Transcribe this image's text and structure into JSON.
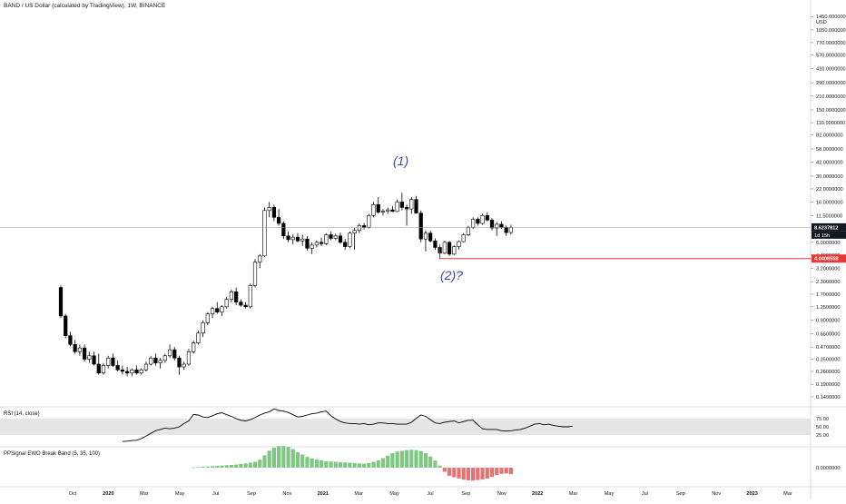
{
  "header": {
    "title": "BAND / US Dollar (calculated by TradingView), 1W, BINANCE"
  },
  "price_axis": {
    "unit": "USD",
    "ticks": [
      "1450.0000000",
      "1050.0000000",
      "770.0000000",
      "570.0000000",
      "410.0000000",
      "290.0000000",
      "210.0000000",
      "150.0000000",
      "110.0000000",
      "82.0000000",
      "58.0000000",
      "42.0000000",
      "30.0000000",
      "22.0000000",
      "16.0000000",
      "11.5000000",
      "8.0000000",
      "6.0000000",
      "4.4000000",
      "3.2000000",
      "2.3000000",
      "1.7000000",
      "1.2500000",
      "0.9000000",
      "0.6500000",
      "0.4700000",
      "0.3500000",
      "0.2600000",
      "0.1900000",
      "0.1400000"
    ],
    "last_price_label": "8.6237812",
    "countdown_label": "1d 15h",
    "support_label": "4.0408558"
  },
  "time_axis": {
    "ticks": [
      "Oct",
      "2020",
      "Mar",
      "May",
      "Jul",
      "Sep",
      "Nov",
      "2021",
      "Mar",
      "May",
      "Jul",
      "Sep",
      "Nov",
      "2022",
      "Mar",
      "May",
      "Jul",
      "Sep",
      "Nov",
      "2023",
      "Mar"
    ]
  },
  "annotations": {
    "wave1": "(1)",
    "wave2": "(2)?"
  },
  "colors": {
    "up": "#ffffff",
    "down": "#000000",
    "support_line": "#e53935",
    "annotation": "#3949ab",
    "ewo_up": "#81c784",
    "ewo_down": "#e57373",
    "rsi_line": "#000000"
  },
  "rsi_pane": {
    "label": "RSI (14, close)",
    "ticks": [
      "75.00",
      "50.00",
      "25.00"
    ]
  },
  "ewo_pane": {
    "label": "PPSignal EWO Break Band (5, 35, 100)",
    "tick": "0.0000000"
  },
  "chart_data": [
    {
      "type": "candlestick",
      "interval": "1W",
      "scale": "log",
      "ylim": [
        0.12,
        1900
      ],
      "support_level": 4.0408558,
      "last_price": 8.6237812,
      "candles": [
        [
          2.0,
          2.1,
          0.95,
          1.0
        ],
        [
          1.0,
          1.05,
          0.58,
          0.62
        ],
        [
          0.62,
          0.68,
          0.48,
          0.5
        ],
        [
          0.5,
          0.56,
          0.4,
          0.42
        ],
        [
          0.42,
          0.5,
          0.38,
          0.46
        ],
        [
          0.46,
          0.5,
          0.33,
          0.35
        ],
        [
          0.35,
          0.42,
          0.32,
          0.38
        ],
        [
          0.38,
          0.42,
          0.3,
          0.31
        ],
        [
          0.31,
          0.4,
          0.24,
          0.25
        ],
        [
          0.25,
          0.32,
          0.24,
          0.3
        ],
        [
          0.3,
          0.38,
          0.28,
          0.36
        ],
        [
          0.36,
          0.4,
          0.29,
          0.3
        ],
        [
          0.3,
          0.34,
          0.26,
          0.27
        ],
        [
          0.27,
          0.3,
          0.24,
          0.26
        ],
        [
          0.26,
          0.29,
          0.23,
          0.25
        ],
        [
          0.25,
          0.28,
          0.23,
          0.27
        ],
        [
          0.27,
          0.3,
          0.24,
          0.25
        ],
        [
          0.25,
          0.28,
          0.24,
          0.27
        ],
        [
          0.27,
          0.33,
          0.26,
          0.31
        ],
        [
          0.31,
          0.38,
          0.3,
          0.36
        ],
        [
          0.36,
          0.4,
          0.3,
          0.32
        ],
        [
          0.32,
          0.36,
          0.28,
          0.34
        ],
        [
          0.34,
          0.4,
          0.32,
          0.38
        ],
        [
          0.38,
          0.5,
          0.36,
          0.44
        ],
        [
          0.44,
          0.47,
          0.34,
          0.36
        ],
        [
          0.36,
          0.38,
          0.24,
          0.29
        ],
        [
          0.29,
          0.33,
          0.27,
          0.31
        ],
        [
          0.31,
          0.45,
          0.3,
          0.42
        ],
        [
          0.42,
          0.55,
          0.4,
          0.52
        ],
        [
          0.52,
          0.7,
          0.5,
          0.66
        ],
        [
          0.66,
          0.9,
          0.6,
          0.85
        ],
        [
          0.85,
          1.1,
          0.8,
          1.05
        ],
        [
          1.05,
          1.25,
          0.95,
          1.2
        ],
        [
          1.2,
          1.4,
          1.05,
          1.1
        ],
        [
          1.1,
          1.3,
          1.0,
          1.25
        ],
        [
          1.25,
          1.6,
          1.2,
          1.5
        ],
        [
          1.5,
          1.9,
          1.4,
          1.8
        ],
        [
          1.8,
          2.0,
          1.3,
          1.4
        ],
        [
          1.4,
          1.5,
          1.25,
          1.3
        ],
        [
          1.3,
          1.4,
          1.2,
          1.25
        ],
        [
          1.25,
          2.2,
          1.2,
          2.1
        ],
        [
          2.1,
          4.0,
          2.0,
          3.7
        ],
        [
          3.7,
          4.5,
          3.2,
          4.3
        ],
        [
          4.3,
          14.0,
          4.2,
          13.0
        ],
        [
          13.0,
          16.0,
          11.0,
          14.0
        ],
        [
          14.0,
          15.0,
          10.0,
          11.0
        ],
        [
          11.0,
          13.5,
          9.0,
          9.5
        ],
        [
          9.5,
          10.0,
          6.5,
          7.0
        ],
        [
          7.0,
          7.8,
          6.0,
          6.4
        ],
        [
          6.4,
          7.3,
          5.7,
          6.8
        ],
        [
          6.8,
          7.5,
          6.0,
          6.2
        ],
        [
          6.2,
          7.2,
          5.5,
          6.5
        ],
        [
          6.5,
          7.0,
          4.9,
          5.2
        ],
        [
          5.2,
          6.0,
          4.5,
          5.6
        ],
        [
          5.6,
          6.3,
          5.3,
          6.0
        ],
        [
          6.0,
          6.7,
          5.5,
          5.8
        ],
        [
          5.8,
          7.5,
          5.6,
          7.2
        ],
        [
          7.2,
          7.8,
          6.3,
          6.6
        ],
        [
          6.6,
          7.4,
          6.3,
          7.0
        ],
        [
          7.0,
          7.6,
          5.8,
          6.0
        ],
        [
          6.0,
          6.5,
          5.0,
          5.4
        ],
        [
          5.4,
          7.8,
          5.2,
          7.5
        ],
        [
          7.5,
          8.5,
          5.0,
          8.0
        ],
        [
          8.0,
          9.5,
          7.5,
          9.0
        ],
        [
          9.0,
          9.6,
          8.2,
          8.6
        ],
        [
          8.6,
          12.0,
          8.4,
          11.5
        ],
        [
          11.5,
          16.0,
          11.0,
          15.0
        ],
        [
          15.0,
          18.0,
          12.0,
          12.5
        ],
        [
          12.5,
          13.5,
          11.5,
          12.8
        ],
        [
          12.8,
          14.0,
          12.0,
          13.2
        ],
        [
          13.2,
          14.5,
          12.5,
          12.7
        ],
        [
          12.7,
          17.0,
          12.5,
          16.0
        ],
        [
          16.0,
          20.0,
          13.0,
          14.0
        ],
        [
          14.0,
          15.0,
          9.0,
          13.5
        ],
        [
          13.5,
          18.0,
          12.0,
          17.0
        ],
        [
          17.0,
          18.5,
          12.0,
          12.2
        ],
        [
          12.2,
          13.0,
          6.0,
          6.5
        ],
        [
          6.5,
          8.0,
          4.8,
          7.5
        ],
        [
          7.5,
          8.0,
          6.0,
          6.2
        ],
        [
          6.2,
          6.6,
          5.0,
          5.3
        ],
        [
          5.3,
          5.6,
          4.0,
          4.6
        ],
        [
          4.6,
          6.2,
          4.5,
          6.0
        ],
        [
          6.0,
          6.2,
          4.3,
          4.5
        ],
        [
          4.5,
          5.6,
          4.4,
          5.4
        ],
        [
          5.4,
          6.3,
          5.0,
          6.1
        ],
        [
          6.1,
          7.5,
          6.0,
          7.2
        ],
        [
          7.2,
          9.0,
          7.0,
          8.6
        ],
        [
          8.6,
          11.0,
          8.3,
          10.5
        ],
        [
          10.5,
          11.0,
          9.0,
          9.5
        ],
        [
          9.5,
          12.0,
          9.2,
          11.5
        ],
        [
          11.5,
          12.5,
          10.0,
          10.3
        ],
        [
          10.3,
          10.8,
          8.0,
          8.5
        ],
        [
          8.5,
          9.8,
          7.0,
          9.3
        ],
        [
          9.3,
          10.0,
          8.3,
          8.6
        ],
        [
          8.6,
          9.0,
          7.0,
          7.6
        ],
        [
          7.6,
          9.2,
          7.2,
          8.62
        ]
      ]
    },
    {
      "type": "line",
      "name": "RSI (14, close)",
      "ylim": [
        0,
        100
      ],
      "values": [
        null,
        null,
        null,
        null,
        null,
        null,
        null,
        null,
        null,
        null,
        null,
        null,
        null,
        null,
        null,
        null,
        null,
        null,
        null,
        null,
        null,
        null,
        null,
        null,
        null,
        null,
        null,
        null,
        null,
        null,
        null,
        null,
        null,
        null,
        null,
        null,
        null,
        null,
        null,
        null,
        null,
        null,
        null,
        null,
        null,
        null,
        null,
        null,
        null,
        null,
        null,
        null,
        null,
        null,
        null,
        null,
        null,
        null,
        null,
        null,
        null,
        null,
        null,
        null,
        null,
        null,
        null,
        null,
        null,
        null,
        null,
        null,
        null,
        null,
        null,
        null,
        null,
        null,
        null,
        null,
        null,
        null,
        null,
        null,
        null,
        null,
        null,
        null,
        null,
        null,
        null,
        null,
        null,
        null,
        null,
        null
      ],
      "rsi": [
        5,
        6,
        8,
        9,
        14,
        22,
        30,
        38,
        42,
        46,
        44,
        46,
        50,
        60,
        68,
        88,
        86,
        80,
        78,
        84,
        90,
        93,
        87,
        82,
        75,
        70,
        68,
        72,
        78,
        86,
        92,
        96,
        105,
        100,
        98,
        94,
        87,
        80,
        82,
        86,
        90,
        92,
        96,
        98,
        84,
        74,
        66,
        62,
        60,
        60,
        58,
        60,
        56,
        58,
        62,
        62,
        60,
        60,
        58,
        58,
        58,
        64,
        76,
        86,
        82,
        72,
        62,
        60,
        64,
        66,
        68,
        62,
        66,
        70,
        70,
        56,
        44,
        42,
        42,
        42,
        38,
        37,
        38,
        40,
        42,
        46,
        52,
        58,
        60,
        56,
        58,
        54,
        52,
        50,
        50,
        52
      ]
    },
    {
      "type": "bar",
      "name": "PPSignal EWO Break Band (5, 35, 100)",
      "start_index": 28,
      "values": [
        0.02,
        0.04,
        0.06,
        0.08,
        0.1,
        0.12,
        0.14,
        0.16,
        0.18,
        0.2,
        0.24,
        0.28,
        0.32,
        0.38,
        0.52,
        0.8,
        1.1,
        1.3,
        1.4,
        1.4,
        1.35,
        1.2,
        1.0,
        0.85,
        0.7,
        0.6,
        0.52,
        0.48,
        0.42,
        0.4,
        0.38,
        0.36,
        0.34,
        0.32,
        0.3,
        0.28,
        0.26,
        0.3,
        0.38,
        0.48,
        0.62,
        0.78,
        0.94,
        1.04,
        1.1,
        1.14,
        1.16,
        1.14,
        1.08,
        0.94,
        0.72,
        0.46,
        0.14,
        -0.26,
        -0.52,
        -0.62,
        -0.7,
        -0.78,
        -0.82,
        -0.84,
        -0.8,
        -0.76,
        -0.7,
        -0.6,
        -0.48,
        -0.4,
        -0.38,
        -0.42
      ]
    }
  ]
}
